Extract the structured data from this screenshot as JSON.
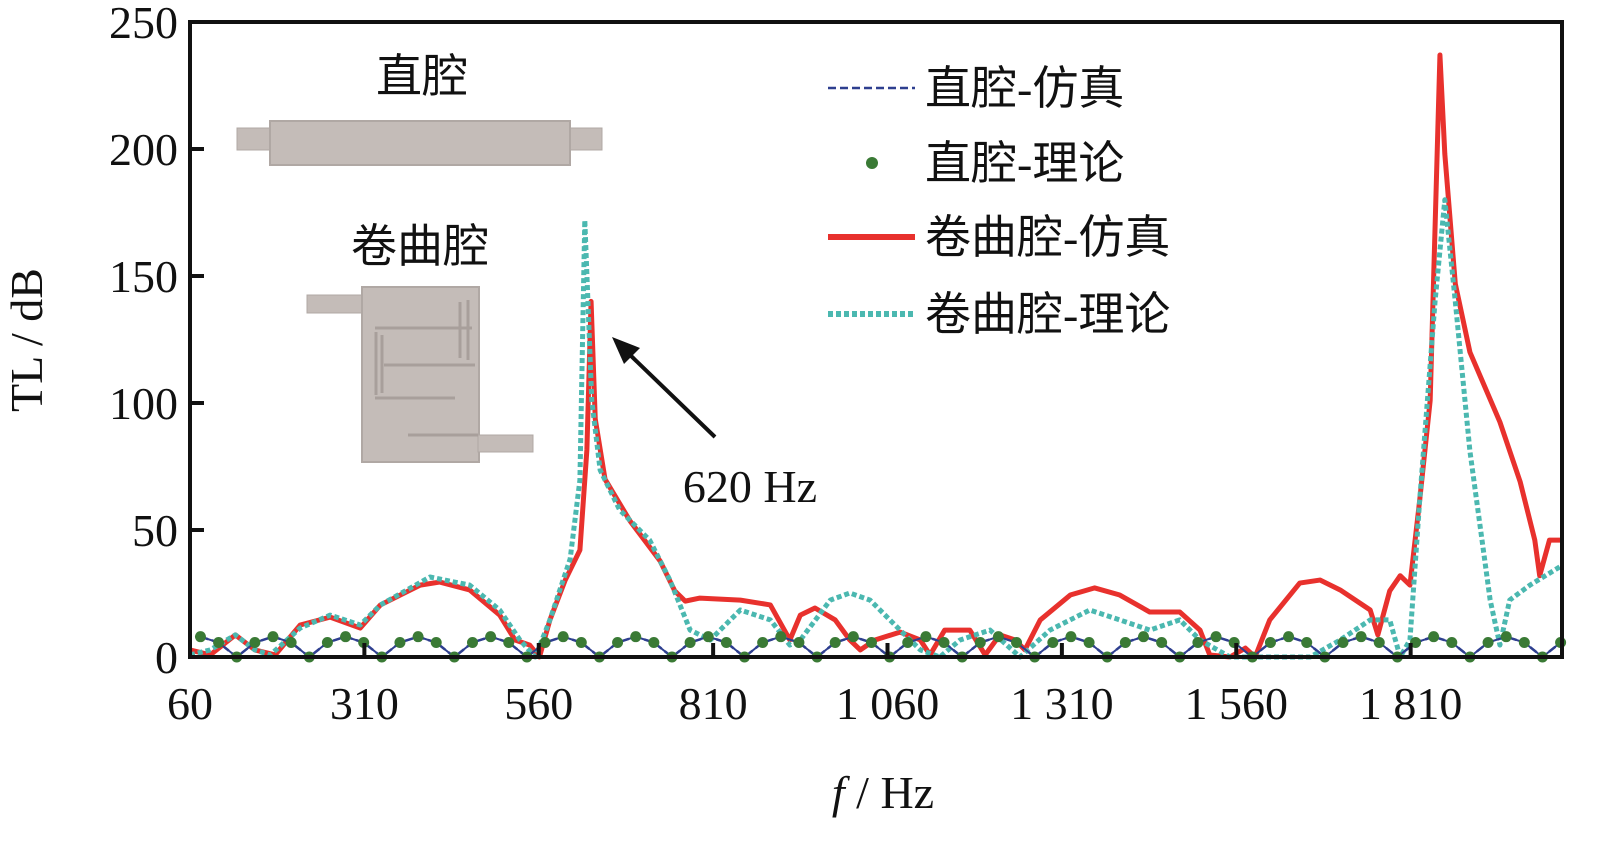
{
  "chart_data": {
    "type": "line",
    "title": "",
    "xlabel_italic": "f",
    "xlabel_rest": " / Hz",
    "ylabel": "TL / dB",
    "xlim": [
      60,
      2027
    ],
    "ylim": [
      0,
      250
    ],
    "xticks": [
      60,
      310,
      560,
      810,
      1060,
      1310,
      1560,
      1810
    ],
    "xtick_labels": [
      "60",
      "310",
      "560",
      "810",
      "1 060",
      "1 310",
      "1 560",
      "1 810"
    ],
    "yticks": [
      0,
      50,
      100,
      150,
      200,
      250
    ],
    "ytick_labels": [
      "0",
      "50",
      "100",
      "150",
      "200",
      "250"
    ],
    "grid": false,
    "legend_position": "top-right",
    "colors": {
      "straight_sim": "#2e3f8f",
      "straight_theory": "#3a7a35",
      "coiled_sim": "#e8312d",
      "coiled_theory": "#4bb8b0",
      "inset_fill": "#c4bcb8"
    },
    "series": [
      {
        "name": "直腔-仿真",
        "style": "dashed",
        "x_start": 75,
        "x_step": 26,
        "y": [
          8,
          5.7,
          0,
          5.7,
          8,
          5.7,
          0,
          5.7,
          8,
          5.7,
          0,
          5.7,
          8,
          5.7,
          0,
          5.7,
          8,
          5.7,
          0,
          5.7,
          8,
          5.7,
          0,
          5.7,
          8,
          5.7,
          0,
          5.7,
          8,
          5.7,
          0,
          5.7,
          8,
          5.7,
          0,
          5.7,
          8,
          5.7,
          0,
          5.7,
          8,
          5.7,
          0,
          5.7,
          8,
          5.7,
          0,
          5.7,
          8,
          5.7,
          0,
          5.7,
          8,
          5.7,
          0,
          5.7,
          8,
          5.7,
          0,
          5.7,
          8,
          5.7,
          0,
          5.7,
          8,
          5.7,
          0,
          5.7,
          8,
          5.7,
          0,
          5.7,
          8,
          5.7,
          0,
          5.7
        ]
      },
      {
        "name": "直腔-理论",
        "style": "dots",
        "x_start": 75,
        "x_step": 26,
        "y": [
          8,
          5.7,
          0,
          5.7,
          8,
          5.7,
          0,
          5.7,
          8,
          5.7,
          0,
          5.7,
          8,
          5.7,
          0,
          5.7,
          8,
          5.7,
          0,
          5.7,
          8,
          5.7,
          0,
          5.7,
          8,
          5.7,
          0,
          5.7,
          8,
          5.7,
          0,
          5.7,
          8,
          5.7,
          0,
          5.7,
          8,
          5.7,
          0,
          5.7,
          8,
          5.7,
          0,
          5.7,
          8,
          5.7,
          0,
          5.7,
          8,
          5.7,
          0,
          5.7,
          8,
          5.7,
          0,
          5.7,
          8,
          5.7,
          0,
          5.7,
          8,
          5.7,
          0,
          5.7,
          8,
          5.7,
          0,
          5.7,
          8,
          5.7,
          0,
          5.7,
          8,
          5.7,
          0,
          5.7
        ]
      },
      {
        "name": "卷曲腔-仿真",
        "style": "solid",
        "x": [
          60,
          89,
          125,
          153,
          182,
          218,
          261,
          304,
          333,
          390,
          418,
          461,
          504,
          526,
          547,
          561,
          576,
          598,
          619,
          629,
          635,
          641,
          655,
          691,
          734,
          755,
          770,
          791,
          849,
          892,
          920,
          935,
          956,
          985,
          1006,
          1021,
          1042,
          1078,
          1107,
          1121,
          1142,
          1178,
          1200,
          1221,
          1243,
          1257,
          1279,
          1322,
          1357,
          1393,
          1436,
          1479,
          1508,
          1522,
          1551,
          1573,
          1587,
          1608,
          1651,
          1680,
          1709,
          1752,
          1763,
          1780,
          1795,
          1809,
          1823,
          1838,
          1852,
          1859,
          1874,
          1895,
          1938,
          1967,
          1988,
          1995,
          2009,
          2027
        ],
        "y": [
          2.8,
          0.8,
          8.7,
          2.8,
          0.8,
          12.6,
          15.7,
          11.4,
          20.5,
          28.3,
          29.5,
          26.4,
          16.5,
          6.7,
          4.7,
          0,
          14.6,
          30.3,
          42.1,
          81.5,
          140,
          93.7,
          70,
          53.5,
          37.8,
          26,
          22,
          23.2,
          22.4,
          20.5,
          6.7,
          16.5,
          19.3,
          14.6,
          6.7,
          2.8,
          6.7,
          9.8,
          6.7,
          0.8,
          10.6,
          10.6,
          0.8,
          8.7,
          6.7,
          2.8,
          14.6,
          24.4,
          27.2,
          24.4,
          17.7,
          17.7,
          10.6,
          0.8,
          0,
          3.5,
          0,
          14.6,
          29.1,
          30.3,
          26.4,
          18.5,
          8.7,
          26,
          32,
          28.3,
          61.8,
          101,
          237,
          198,
          147,
          120,
          92.5,
          69,
          46,
          32,
          46,
          46
        ]
      },
      {
        "name": "卷曲腔-理论",
        "style": "dotted",
        "x": [
          60,
          89,
          125,
          153,
          175,
          218,
          261,
          304,
          333,
          404,
          461,
          504,
          533,
          555,
          576,
          605,
          619,
          626,
          636,
          648,
          676,
          719,
          748,
          777,
          806,
          820,
          849,
          892,
          920,
          935,
          978,
          1006,
          1035,
          1078,
          1107,
          1135,
          1164,
          1207,
          1250,
          1293,
          1350,
          1393,
          1436,
          1479,
          1508,
          1551,
          1666,
          1709,
          1752,
          1780,
          1795,
          1809,
          1823,
          1845,
          1859,
          1874,
          1895,
          1924,
          1938,
          1952,
          1981,
          2027
        ],
        "y": [
          0.8,
          2.8,
          8.7,
          2.8,
          0.8,
          11.4,
          16.5,
          12.6,
          20.5,
          31.5,
          28.3,
          18.5,
          6.7,
          0,
          14.6,
          38.6,
          69.7,
          172,
          101,
          73.6,
          57.9,
          46,
          30.3,
          10.6,
          6.7,
          10.6,
          18.5,
          14.6,
          4.7,
          6.7,
          22.4,
          25.2,
          22.4,
          10.6,
          2.8,
          0,
          6.7,
          10.6,
          0,
          10.6,
          18.5,
          14.6,
          10.6,
          14.6,
          6.7,
          0,
          0,
          6.7,
          14.6,
          14.6,
          0,
          6.7,
          61.8,
          140,
          180,
          140,
          81,
          22.4,
          4.7,
          22.4,
          28.3,
          36
        ]
      }
    ],
    "annotations": [
      {
        "text": "620 Hz",
        "arrow_to_x": 635,
        "arrow_to_y": 135
      }
    ],
    "insets": [
      {
        "label": "直腔"
      },
      {
        "label": "卷曲腔"
      }
    ]
  }
}
